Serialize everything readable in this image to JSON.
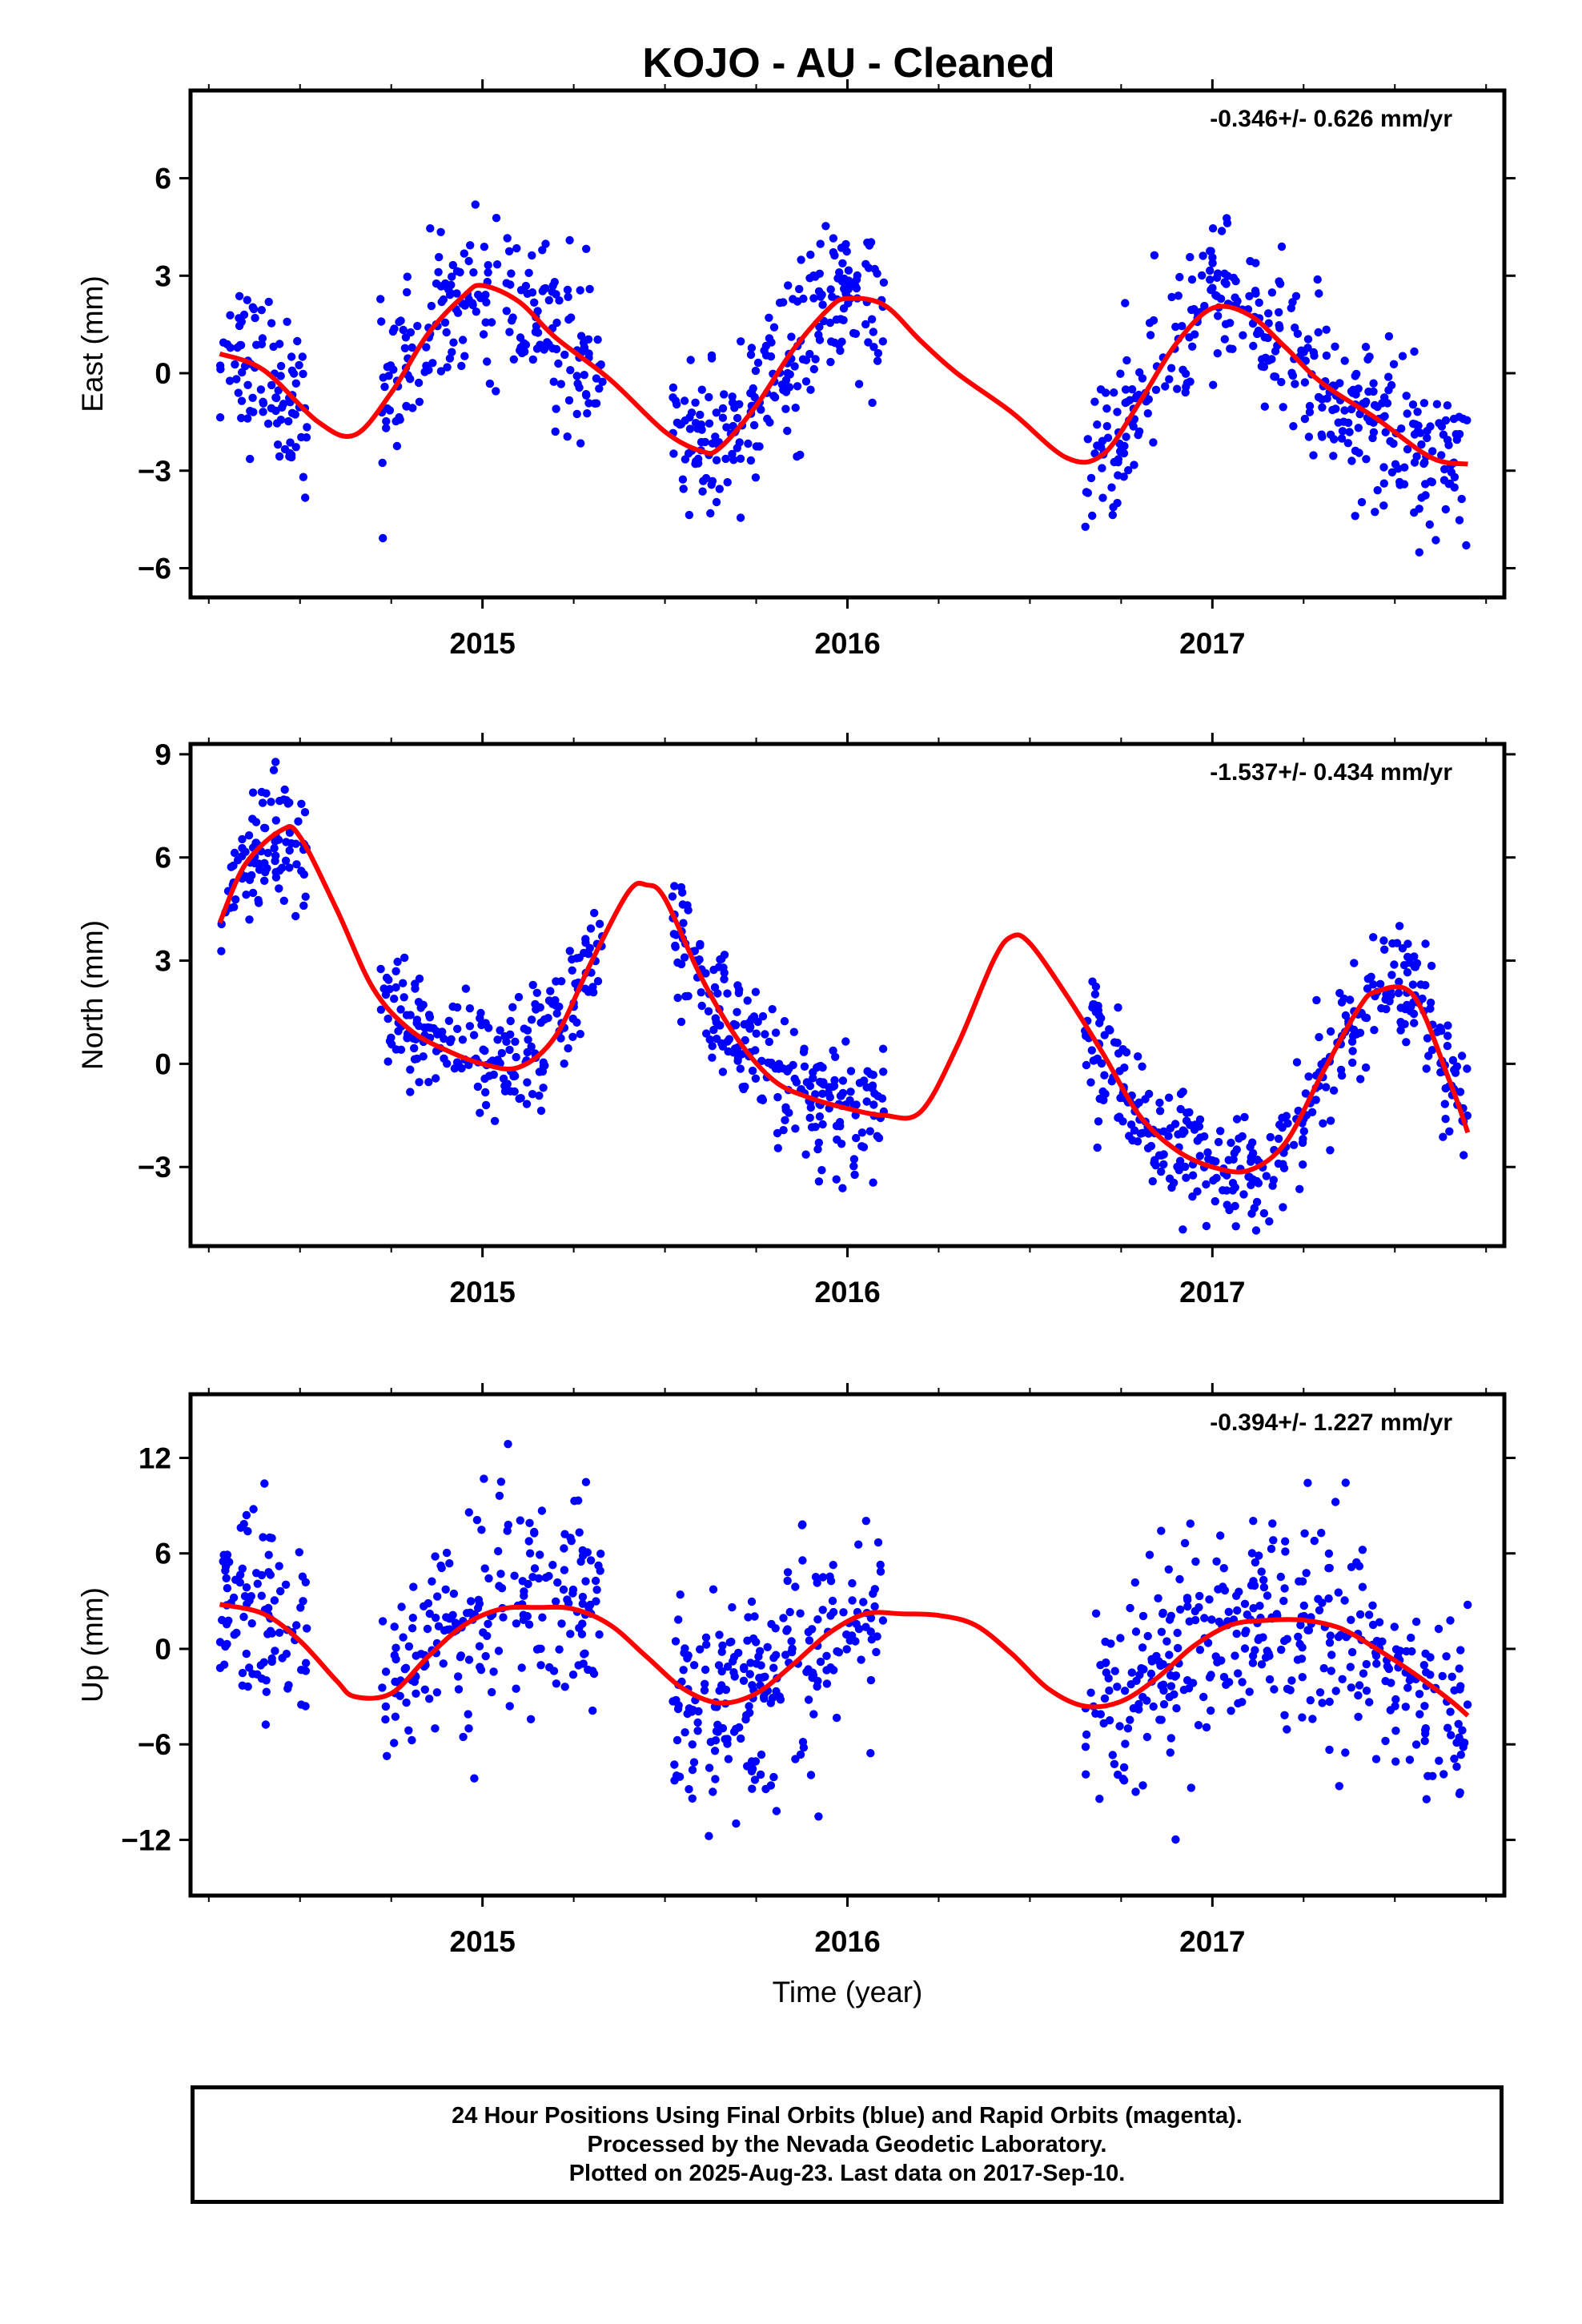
{
  "footer": {
    "line1": "24 Hour Positions Using Final Orbits (blue) and Rapid Orbits (magenta).",
    "line2": "Processed by the Nevada Geodetic Laboratory.",
    "line3": "Plotted on 2025-Aug-23. Last data on 2017-Sep-10."
  },
  "colors": {
    "points": "#0000ff",
    "fit": "#ff0000",
    "axes": "#000000"
  },
  "chart_data": [
    {
      "type": "scatter",
      "title": "KOJO  - AU - Cleaned",
      "ylabel": "East (mm)",
      "xlabel": "",
      "rate_label": "-0.346+/- 0.626 mm/yr",
      "xlim": [
        2014.2,
        2017.8
      ],
      "ylim": [
        -6.9,
        8.7
      ],
      "yticks": [
        -6,
        -3,
        0,
        3,
        6
      ],
      "ytick_labels": [
        "−6",
        "−3",
        "0",
        "3",
        "6"
      ],
      "xticks": [
        2015,
        2016,
        2017
      ],
      "xtick_labels": [
        "2015",
        "2016",
        "2017"
      ],
      "fit": {
        "x": [
          2014.28,
          2014.4,
          2014.55,
          2014.65,
          2014.75,
          2014.85,
          2014.95,
          2015.0,
          2015.1,
          2015.2,
          2015.35,
          2015.5,
          2015.6,
          2015.65,
          2015.75,
          2015.85,
          2015.95,
          2016.0,
          2016.1,
          2016.2,
          2016.3,
          2016.45,
          2016.6,
          2016.7,
          2016.8,
          2016.9,
          2017.0,
          2017.1,
          2017.2,
          2017.3,
          2017.45,
          2017.6,
          2017.7
        ],
        "y": [
          0.6,
          0.1,
          -1.5,
          -1.9,
          -0.6,
          1.2,
          2.4,
          2.7,
          2.2,
          1.1,
          -0.2,
          -1.8,
          -2.4,
          -2.3,
          -1.0,
          0.7,
          2.0,
          2.3,
          2.1,
          1.0,
          0.0,
          -1.2,
          -2.6,
          -2.5,
          -0.9,
          0.9,
          2.0,
          1.8,
          0.8,
          -0.3,
          -1.4,
          -2.6,
          -2.8
        ]
      },
      "points": {
        "segments": [
          [
            2014.28,
            2014.52
          ],
          [
            2014.72,
            2015.33
          ],
          [
            2015.52,
            2016.1
          ],
          [
            2016.65,
            2017.7
          ]
        ],
        "count_per_segment": [
          95,
          210,
          230,
          370
        ],
        "noise": 1.2
      }
    },
    {
      "type": "scatter",
      "ylabel": "North (mm)",
      "xlabel": "",
      "rate_label": "-1.537+/- 0.434 mm/yr",
      "xlim": [
        2014.2,
        2017.8
      ],
      "ylim": [
        -5.3,
        9.3
      ],
      "yticks": [
        -3,
        0,
        3,
        6,
        9
      ],
      "ytick_labels": [
        "−3",
        "0",
        "3",
        "6",
        "9"
      ],
      "xticks": [
        2015,
        2016,
        2017
      ],
      "xtick_labels": [
        "2015",
        "2016",
        "2017"
      ],
      "fit": {
        "x": [
          2014.28,
          2014.35,
          2014.45,
          2014.5,
          2014.6,
          2014.7,
          2014.8,
          2014.9,
          2015.0,
          2015.1,
          2015.2,
          2015.3,
          2015.4,
          2015.45,
          2015.5,
          2015.6,
          2015.7,
          2015.8,
          2015.9,
          2016.0,
          2016.1,
          2016.2,
          2016.3,
          2016.4,
          2016.45,
          2016.5,
          2016.6,
          2016.7,
          2016.8,
          2016.9,
          2017.0,
          2017.1,
          2017.2,
          2017.3,
          2017.4,
          2017.45,
          2017.55,
          2017.65,
          2017.7
        ],
        "y": [
          4.1,
          5.8,
          6.8,
          6.6,
          4.5,
          2.2,
          1.0,
          0.4,
          0.0,
          -0.1,
          0.8,
          3.0,
          5.0,
          5.2,
          4.8,
          2.5,
          0.7,
          -0.5,
          -1.0,
          -1.3,
          -1.5,
          -1.4,
          0.5,
          3.0,
          3.7,
          3.5,
          2.0,
          0.3,
          -1.5,
          -2.5,
          -3.0,
          -3.1,
          -2.3,
          -0.3,
          1.6,
          2.1,
          2.0,
          -0.5,
          -2.0
        ]
      },
      "points": {
        "segments": [
          [
            2014.28,
            2014.52
          ],
          [
            2014.72,
            2015.33
          ],
          [
            2015.52,
            2016.1
          ],
          [
            2016.65,
            2017.7
          ]
        ],
        "count_per_segment": [
          95,
          210,
          230,
          370
        ],
        "noise": 0.9
      }
    },
    {
      "type": "scatter",
      "ylabel": "Up (mm)",
      "xlabel": "Time (year)",
      "rate_label": "-0.394+/- 1.227 mm/yr",
      "xlim": [
        2014.2,
        2017.8
      ],
      "ylim": [
        -15.5,
        16.0
      ],
      "yticks": [
        -12,
        -6,
        0,
        6,
        12
      ],
      "ytick_labels": [
        "−12",
        "−6",
        "0",
        "6",
        "12"
      ],
      "xticks": [
        2015,
        2016,
        2017
      ],
      "xtick_labels": [
        "2015",
        "2016",
        "2017"
      ],
      "fit": {
        "x": [
          2014.28,
          2014.4,
          2014.5,
          2014.6,
          2014.65,
          2014.75,
          2014.85,
          2014.95,
          2015.05,
          2015.15,
          2015.25,
          2015.35,
          2015.45,
          2015.55,
          2015.65,
          2015.75,
          2015.85,
          2015.95,
          2016.05,
          2016.15,
          2016.25,
          2016.35,
          2016.45,
          2016.55,
          2016.65,
          2016.75,
          2016.85,
          2016.95,
          2017.05,
          2017.15,
          2017.25,
          2017.35,
          2017.45,
          2017.55,
          2017.65,
          2017.7
        ],
        "y": [
          2.8,
          2.2,
          0.5,
          -2.0,
          -3.0,
          -2.8,
          -0.5,
          1.5,
          2.5,
          2.6,
          2.5,
          1.5,
          -0.5,
          -2.5,
          -3.4,
          -2.8,
          -1.0,
          1.0,
          2.2,
          2.2,
          2.1,
          1.5,
          -0.3,
          -2.5,
          -3.6,
          -3.3,
          -1.8,
          0.2,
          1.5,
          1.8,
          1.8,
          1.3,
          0.0,
          -1.5,
          -3.2,
          -4.2
        ]
      },
      "points": {
        "segments": [
          [
            2014.28,
            2014.52
          ],
          [
            2014.72,
            2015.33
          ],
          [
            2015.52,
            2016.1
          ],
          [
            2016.65,
            2017.7
          ]
        ],
        "count_per_segment": [
          95,
          210,
          230,
          370
        ],
        "noise": 3.3
      }
    }
  ]
}
